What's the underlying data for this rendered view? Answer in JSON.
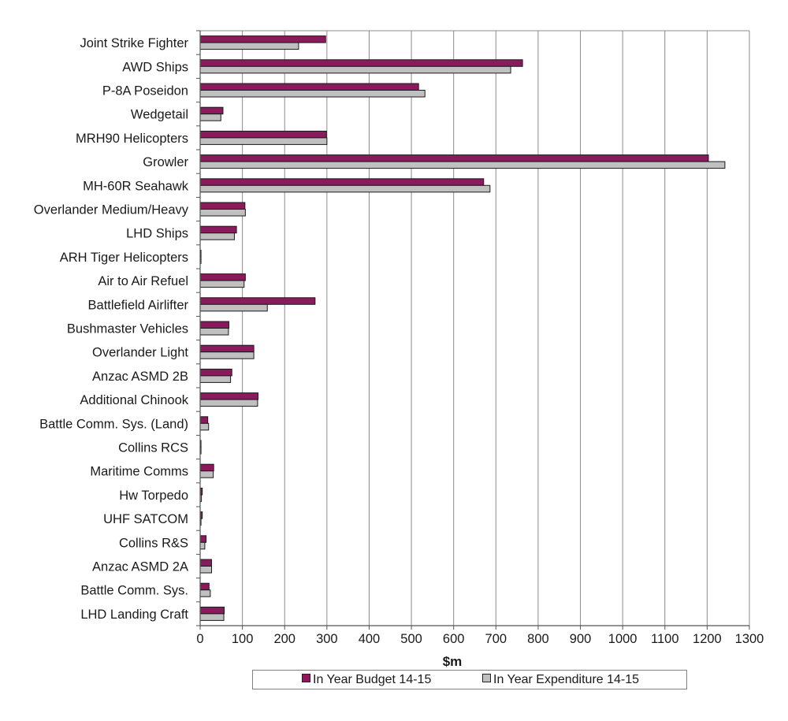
{
  "chart_data": {
    "type": "bar",
    "orientation": "horizontal",
    "xlabel": "$m",
    "xlim": [
      0,
      1300
    ],
    "xticks": [
      0,
      100,
      200,
      300,
      400,
      500,
      600,
      700,
      800,
      900,
      1000,
      1100,
      1200,
      1300
    ],
    "grid": "vertical",
    "legend_position": "bottom",
    "categories": [
      "Joint Strike Fighter",
      "AWD Ships",
      "P-8A Poseidon",
      "Wedgetail",
      "MRH90 Helicopters",
      "Growler",
      "MH-60R Seahawk",
      "Overlander Medium/Heavy",
      "LHD Ships",
      "ARH Tiger Helicopters",
      "Air to Air Refuel",
      "Battlefield Airlifter",
      "Bushmaster Vehicles",
      "Overlander Light",
      "Anzac ASMD 2B",
      "Additional Chinook",
      "Battle Comm. Sys. (Land)",
      "Collins RCS",
      "Maritime Comms",
      "Hw Torpedo",
      "UHF SATCOM",
      "Collins R&S",
      "Anzac ASMD 2A",
      "Battle Comm. Sys.",
      "LHD Landing Craft"
    ],
    "series": [
      {
        "name": "In Year Budget 14-15",
        "color": "#8b1a5c",
        "values": [
          297,
          763,
          517,
          54,
          299,
          1203,
          671,
          106,
          86,
          2,
          107,
          272,
          68,
          127,
          75,
          137,
          18,
          2,
          32,
          5,
          5,
          14,
          27,
          21,
          57
        ]
      },
      {
        "name": "In Year Expenditure 14-15",
        "color": "#c0c0c0",
        "values": [
          233,
          735,
          532,
          49,
          300,
          1242,
          686,
          107,
          81,
          2,
          104,
          159,
          67,
          127,
          72,
          136,
          20,
          2,
          31,
          3,
          2,
          11,
          27,
          24,
          56
        ]
      }
    ]
  }
}
